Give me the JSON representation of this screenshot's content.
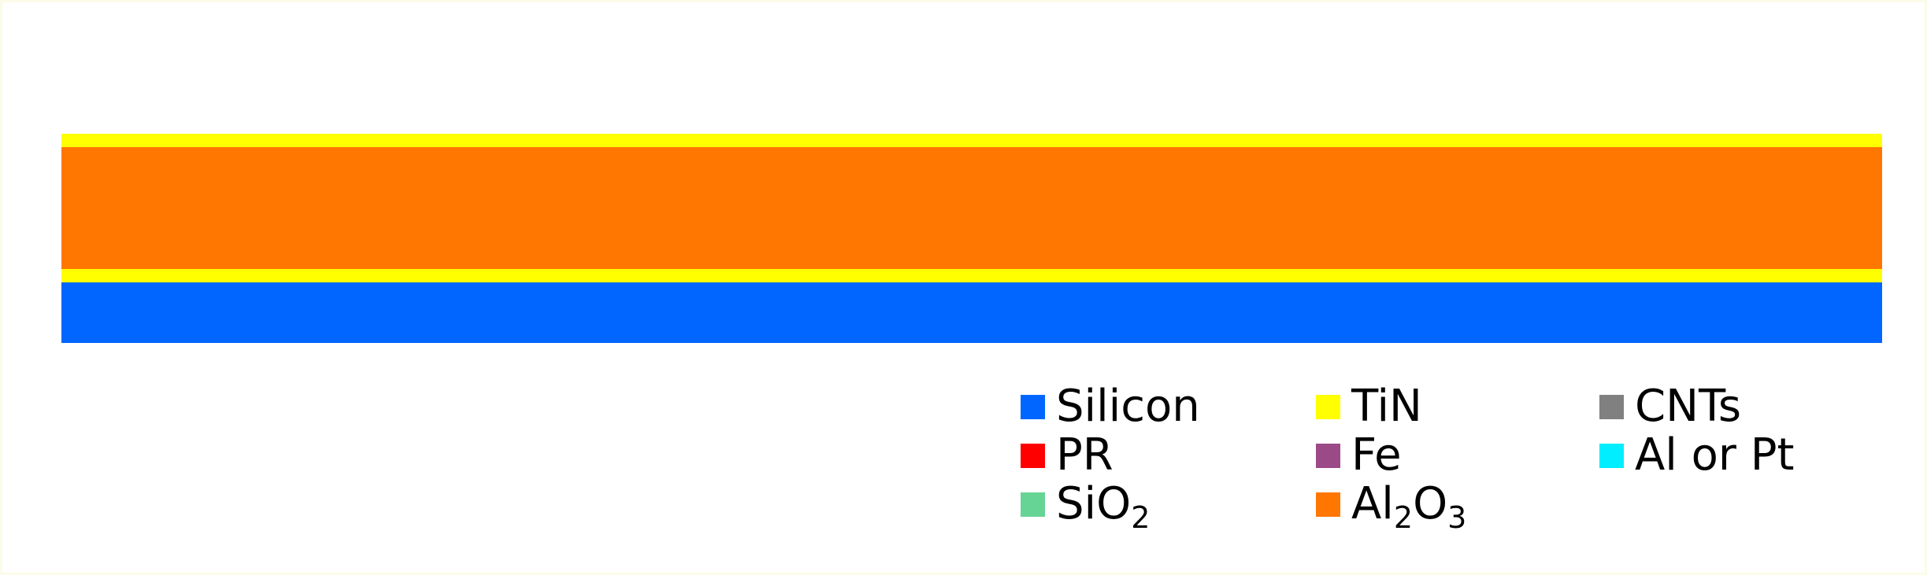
{
  "diagram": {
    "layers": [
      {
        "material": "TiN",
        "color": "#ffff00"
      },
      {
        "material": "Al2O3",
        "color": "#ff7700"
      },
      {
        "material": "TiN",
        "color": "#ffff00"
      },
      {
        "material": "Silicon",
        "color": "#0066ff"
      }
    ]
  },
  "legend": {
    "silicon": {
      "label": "Silicon",
      "color": "#0066ff"
    },
    "tin": {
      "label": "TiN",
      "color": "#ffff00"
    },
    "cnts": {
      "label": "CNTs",
      "color": "#808080"
    },
    "pr": {
      "label": "PR",
      "color": "#ff0000"
    },
    "fe": {
      "label": "Fe",
      "color": "#9b4a87"
    },
    "al_or_pt": {
      "label": "Al or Pt",
      "color": "#00eeff"
    },
    "sio2": {
      "label_base": "SiO",
      "label_sub": "2",
      "color": "#66d494"
    },
    "al2o3": {
      "label_part1": "Al",
      "label_sub1": "2",
      "label_part2": "O",
      "label_sub2": "3",
      "color": "#ff7700"
    }
  }
}
